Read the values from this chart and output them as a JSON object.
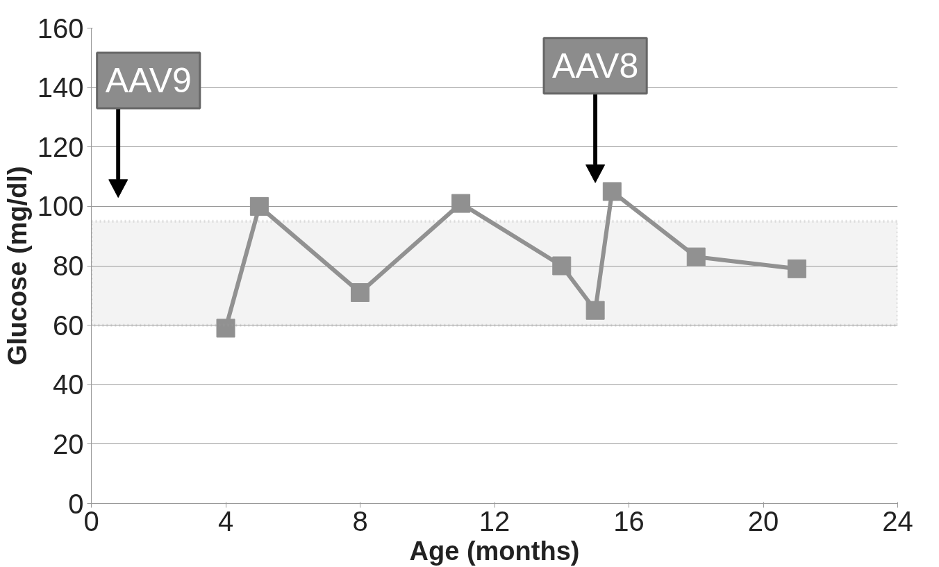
{
  "chart_data": {
    "type": "line",
    "xlabel": "Age (months)",
    "ylabel": "Glucose (mg/dl)",
    "x": [
      4,
      5,
      8,
      11,
      14,
      15,
      15.5,
      18,
      21
    ],
    "series": [
      {
        "color": "#909090",
        "values": [
          59,
          100,
          71,
          101,
          80,
          65,
          105,
          83,
          79
        ]
      }
    ],
    "xlim": [
      0,
      24
    ],
    "xticks": [
      0,
      4,
      8,
      12,
      16,
      20,
      24
    ],
    "ylim": [
      0,
      160
    ],
    "yticks": [
      0,
      20,
      40,
      60,
      80,
      100,
      120,
      140,
      160
    ],
    "grid": "y",
    "marker": "square",
    "line_style": "solid",
    "bands": [
      {
        "axis": "y",
        "from": 60,
        "to": 95,
        "color": "#a0a0a0"
      }
    ],
    "annotations": [
      "AAV9",
      "AAV8"
    ]
  }
}
